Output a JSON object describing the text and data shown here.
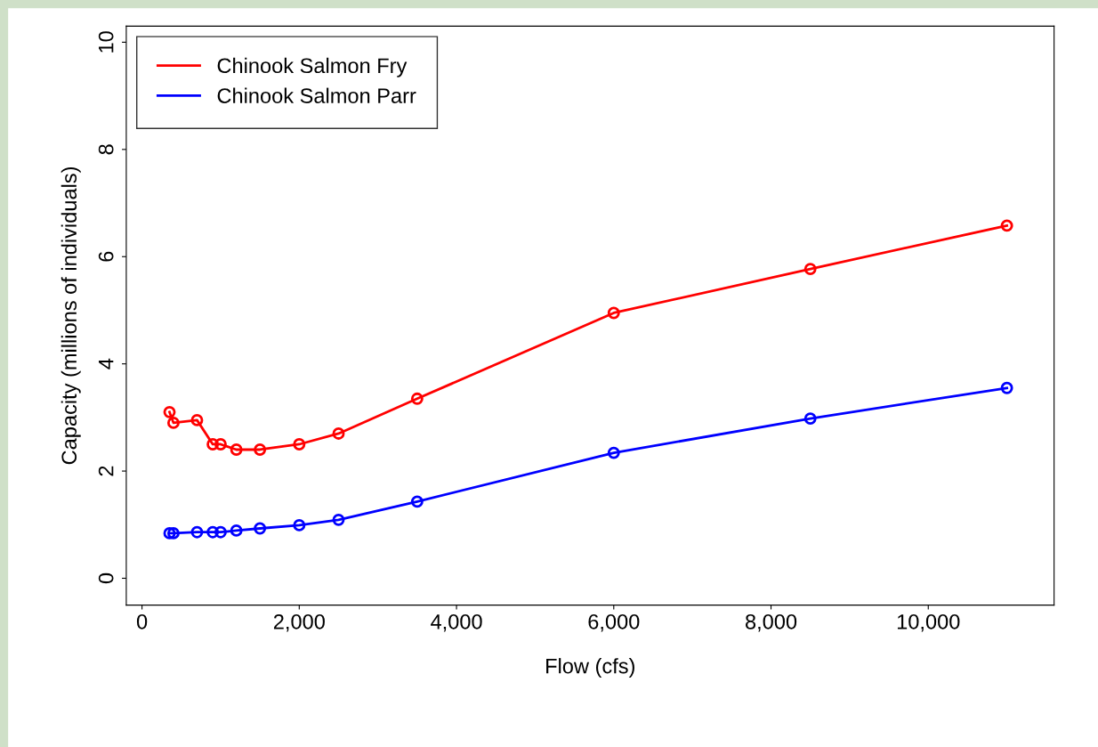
{
  "chart_data": {
    "type": "line",
    "xlabel": "Flow (cfs)",
    "ylabel": "Capacity (millions of individuals)",
    "x": [
      350,
      400,
      700,
      900,
      1000,
      1200,
      1500,
      2000,
      2500,
      3500,
      6000,
      8500,
      11000
    ],
    "series": [
      {
        "name": "Chinook Salmon Fry",
        "color": "#ff0000",
        "values": [
          3.1,
          2.9,
          2.95,
          2.5,
          2.5,
          2.4,
          2.4,
          2.5,
          2.7,
          3.35,
          4.95,
          5.77,
          6.58
        ]
      },
      {
        "name": "Chinook Salmon Parr",
        "color": "#0000ff",
        "values": [
          0.84,
          0.84,
          0.86,
          0.86,
          0.86,
          0.89,
          0.93,
          0.99,
          1.09,
          1.43,
          2.34,
          2.98,
          3.55
        ]
      }
    ],
    "xlim": [
      -200,
      11600
    ],
    "ylim": [
      -0.5,
      10.3
    ],
    "xticks": [
      0,
      {
        "value": 2000,
        "label": "2,000"
      },
      {
        "value": 4000,
        "label": "4,000"
      },
      {
        "value": 6000,
        "label": "6,000"
      },
      {
        "value": 8000,
        "label": "8,000"
      },
      {
        "value": 10000,
        "label": "10,000"
      }
    ],
    "yticks": [
      0,
      2,
      4,
      6,
      8,
      10
    ],
    "legend": "top left",
    "marker": "circle",
    "line_style": "solid",
    "grid": false
  }
}
